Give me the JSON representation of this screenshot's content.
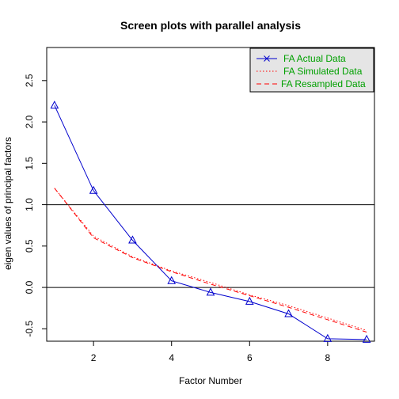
{
  "chart_data": {
    "type": "line",
    "title": "Screen plots with parallel analysis",
    "xlabel": "Factor Number",
    "ylabel": "eigen values of principal factors",
    "xlim": [
      0.8,
      9.2
    ],
    "ylim": [
      -0.65,
      2.9
    ],
    "x_ticks": [
      2,
      4,
      6,
      8
    ],
    "y_ticks": [
      -0.5,
      0.0,
      0.5,
      1.0,
      1.5,
      2.0,
      2.5
    ],
    "y_tick_labels": [
      "-0.5",
      "0.0",
      "0.5",
      "1.0",
      "1.5",
      "2.0",
      "2.5"
    ],
    "reference_lines": [
      0,
      1
    ],
    "legend_position": "top-right",
    "x": [
      1,
      2,
      3,
      4,
      5,
      6,
      7,
      8,
      9
    ],
    "series": [
      {
        "name": "FA  Actual Data",
        "values": [
          2.2,
          1.17,
          0.57,
          0.08,
          -0.06,
          -0.17,
          -0.32,
          -0.62,
          -0.63
        ],
        "color": "#0000CD",
        "style": "solid",
        "marker": "triangle",
        "legend_marker": "x"
      },
      {
        "name": "FA  Simulated Data",
        "values": [
          1.2,
          0.62,
          0.37,
          0.2,
          0.06,
          -0.09,
          -0.22,
          -0.37,
          -0.52
        ],
        "color": "#FF0000",
        "style": "dotted"
      },
      {
        "name": "FA  Resampled Data",
        "values": [
          1.2,
          0.6,
          0.36,
          0.19,
          0.04,
          -0.1,
          -0.24,
          -0.39,
          -0.54
        ],
        "color": "#FF0000",
        "style": "dashed"
      }
    ],
    "legend_text_color": "#00A000",
    "legend_bg": "#E5E5E5"
  }
}
